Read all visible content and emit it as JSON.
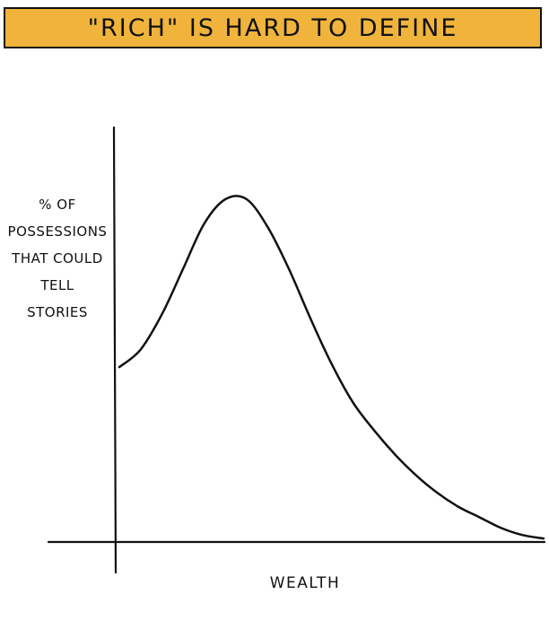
{
  "title": "\"RICH\" IS HARD TO DEFINE",
  "chart_data": {
    "type": "line",
    "title": "\"RICH\" IS HARD TO DEFINE",
    "xlabel": "WEALTH",
    "ylabel_lines": [
      "% OF",
      "POSSESSIONS",
      "THAT COULD",
      "TELL",
      "STORIES"
    ],
    "x": [
      0,
      0.05,
      0.1,
      0.15,
      0.2,
      0.25,
      0.3,
      0.35,
      0.4,
      0.45,
      0.5,
      0.55,
      0.6,
      0.65,
      0.7,
      0.75,
      0.8,
      0.85,
      0.9,
      0.95,
      1.0
    ],
    "y": [
      0.5,
      0.55,
      0.65,
      0.78,
      0.91,
      0.98,
      0.98,
      0.9,
      0.78,
      0.64,
      0.51,
      0.4,
      0.32,
      0.25,
      0.19,
      0.14,
      0.1,
      0.07,
      0.04,
      0.02,
      0.01
    ],
    "xlim": [
      0,
      1
    ],
    "ylim": [
      0,
      1.05
    ],
    "grid": false,
    "line_color": "#111111",
    "banner_color": "#f0b43c"
  }
}
